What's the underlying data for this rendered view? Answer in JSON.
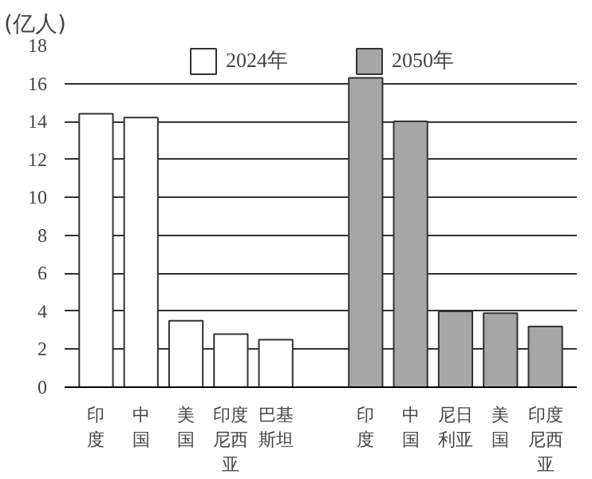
{
  "chart_data": {
    "type": "bar",
    "ylabel": "(亿人)",
    "categories": [
      "印度",
      "中国",
      "美国",
      "印度尼西亚",
      "巴基斯坦",
      null,
      "印度",
      "中国",
      "尼日利亚",
      "美国",
      "印度尼西亚"
    ],
    "series": [
      {
        "name": "2024年",
        "color": "#ffffff",
        "values": [
          14.4,
          14.2,
          3.5,
          2.8,
          2.5,
          null,
          null,
          null,
          null,
          null,
          null
        ]
      },
      {
        "name": "2050年",
        "color": "#a6a6a6",
        "values": [
          null,
          null,
          null,
          null,
          null,
          null,
          16.3,
          14.0,
          4.0,
          3.9,
          3.2
        ]
      }
    ],
    "ylim": [
      0,
      18
    ],
    "yticks": [
      0,
      2,
      4,
      6,
      8,
      10,
      12,
      14,
      16,
      18
    ],
    "grid": "y",
    "legend": "top"
  }
}
